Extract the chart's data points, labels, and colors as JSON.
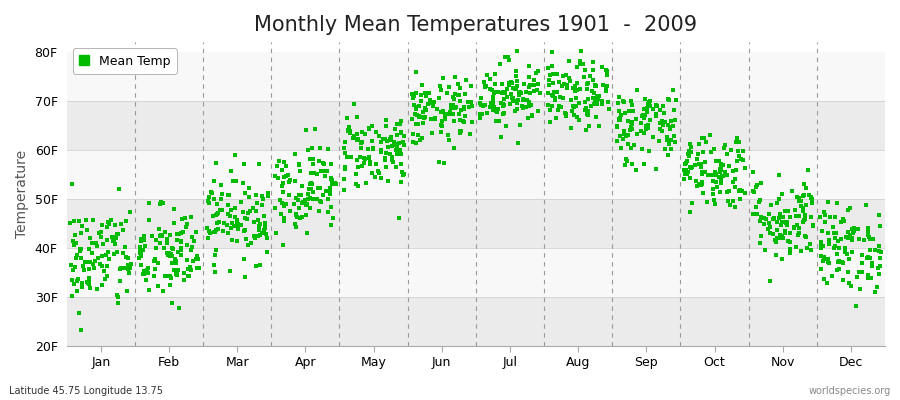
{
  "title": "Monthly Mean Temperatures 1901  -  2009",
  "ylabel": "Temperature",
  "ylim": [
    20,
    82
  ],
  "yticks": [
    20,
    30,
    40,
    50,
    60,
    70,
    80
  ],
  "ytick_labels": [
    "20F",
    "30F",
    "40F",
    "50F",
    "60F",
    "70F",
    "80F"
  ],
  "months": [
    "Jan",
    "Feb",
    "Mar",
    "Apr",
    "May",
    "Jun",
    "Jul",
    "Aug",
    "Sep",
    "Oct",
    "Nov",
    "Dec"
  ],
  "dot_color": "#00bb00",
  "background_color": "#ffffff",
  "plot_bg_color": "#ffffff",
  "band_colors": [
    "#ebebeb",
    "#f8f8f8",
    "#ebebeb",
    "#f8f8f8",
    "#ebebeb",
    "#f8f8f8"
  ],
  "title_fontsize": 15,
  "axis_fontsize": 9,
  "label_fontsize": 10,
  "legend_label": "Mean Temp",
  "footer_left": "Latitude 45.75 Longitude 13.75",
  "footer_right": "worldspecies.org",
  "n_years": 109,
  "monthly_means_f": [
    38.0,
    38.5,
    46.5,
    52.5,
    60.0,
    67.5,
    71.5,
    71.0,
    65.0,
    56.0,
    46.0,
    40.0
  ],
  "monthly_stds_f": [
    5.5,
    5.0,
    4.5,
    4.5,
    4.0,
    3.5,
    3.5,
    3.5,
    4.0,
    4.0,
    4.5,
    4.5
  ],
  "seed": 42
}
